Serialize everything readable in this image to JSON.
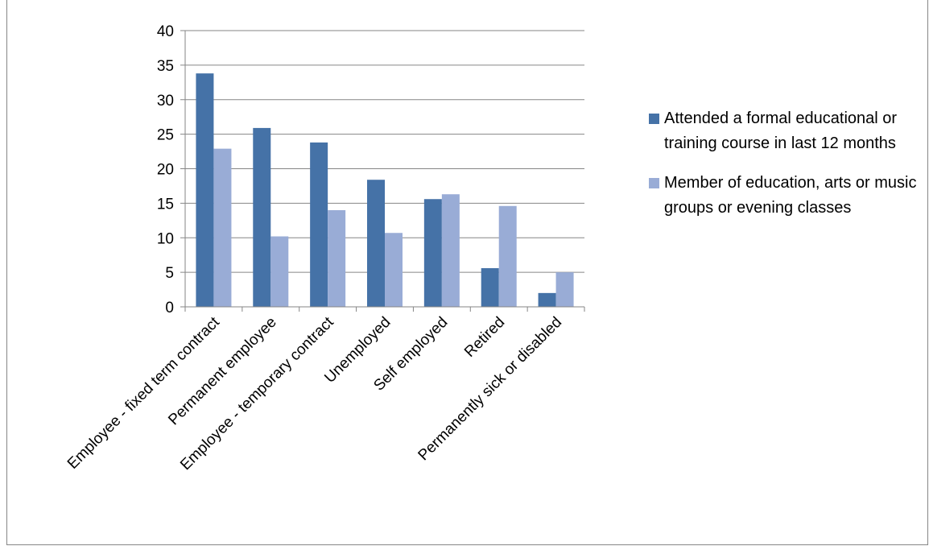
{
  "chart_data": {
    "type": "bar",
    "categories": [
      "Employee - fixed term contract",
      "Permanent employee",
      "Employee - temporary contract",
      "Unemployed",
      "Self employed",
      "Retired",
      "Permanently sick or disabled"
    ],
    "series": [
      {
        "name": "Attended a formal educational or training course in last 12 months",
        "color": "#4572a7",
        "values": [
          33.8,
          25.9,
          23.8,
          18.4,
          15.6,
          5.6,
          2.0
        ]
      },
      {
        "name": "Member of education, arts or music groups or evening classes",
        "color": "#99acd6",
        "values": [
          22.9,
          10.2,
          14.0,
          10.7,
          16.3,
          14.6,
          5.0
        ]
      }
    ],
    "ylim": [
      0,
      40
    ],
    "yticks": [
      0,
      5,
      10,
      15,
      20,
      25,
      30,
      35,
      40
    ],
    "grid": true,
    "legend_position": "right",
    "title": "",
    "xlabel": "",
    "ylabel": ""
  }
}
